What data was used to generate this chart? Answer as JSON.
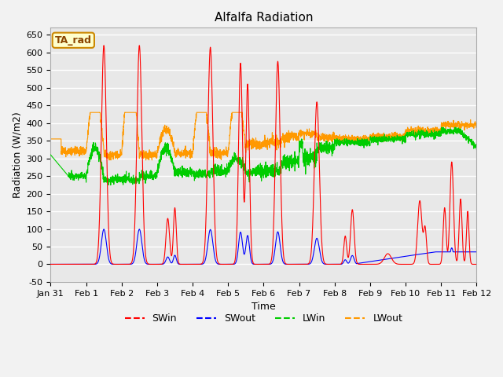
{
  "title": "Alfalfa Radiation",
  "xlabel": "Time",
  "ylabel": "Radiation (W/m2)",
  "ylim": [
    -50,
    670
  ],
  "xlim": [
    0,
    12
  ],
  "annotation_text": "TA_rad",
  "annotation_bg": "#FFFFCC",
  "annotation_border": "#CC8800",
  "plot_bg_color": "#E8E8E8",
  "fig_bg_color": "#F2F2F2",
  "grid_color": "#FFFFFF",
  "title_fontsize": 11,
  "axis_label_fontsize": 9,
  "tick_label_fontsize": 8,
  "x_ticks": [
    0,
    1,
    2,
    3,
    4,
    5,
    6,
    7,
    8,
    9,
    10,
    11,
    12
  ],
  "x_tick_labels": [
    "Jan 31",
    "Feb 1",
    "Feb 2",
    "Feb 3",
    "Feb 4",
    "Feb 5",
    "Feb 6",
    "Feb 7",
    "Feb 8",
    "Feb 9",
    "Feb 10",
    "Feb 11",
    "Feb 12"
  ],
  "y_ticks": [
    -50,
    0,
    50,
    100,
    150,
    200,
    250,
    300,
    350,
    400,
    450,
    500,
    550,
    600,
    650
  ],
  "SWin_color": "#FF0000",
  "SWout_color": "#0000FF",
  "LWin_color": "#00CC00",
  "LWout_color": "#FF9900"
}
